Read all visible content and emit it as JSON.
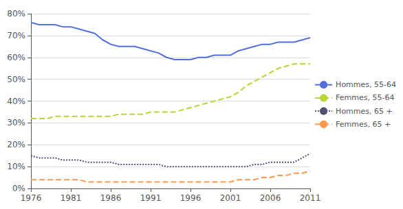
{
  "chart_data": {
    "type": "line",
    "x": [
      1976,
      1977,
      1978,
      1979,
      1980,
      1981,
      1982,
      1983,
      1984,
      1985,
      1986,
      1987,
      1988,
      1989,
      1990,
      1991,
      1992,
      1993,
      1994,
      1995,
      1996,
      1997,
      1998,
      1999,
      2000,
      2001,
      2002,
      2003,
      2004,
      2005,
      2006,
      2007,
      2008,
      2009,
      2010,
      2011
    ],
    "series": [
      {
        "name": "Hommes, 55-64",
        "line_style": "solid",
        "values": [
          76,
          75,
          75,
          75,
          74,
          74,
          73,
          72,
          71,
          68,
          66,
          65,
          65,
          65,
          64,
          63,
          62,
          60,
          59,
          59,
          59,
          60,
          60,
          61,
          61,
          61,
          63,
          64,
          65,
          66,
          66,
          67,
          67,
          67,
          68,
          69
        ]
      },
      {
        "name": "Femmes, 55-64",
        "line_style": "dashed",
        "values": [
          32,
          32,
          32,
          33,
          33,
          33,
          33,
          33,
          33,
          33,
          33,
          34,
          34,
          34,
          34,
          35,
          35,
          35,
          35,
          36,
          37,
          38,
          39,
          40,
          41,
          42,
          44,
          47,
          49,
          51,
          53,
          55,
          56,
          57,
          57,
          57
        ]
      },
      {
        "name": "Hommes, 65 +",
        "line_style": "dotted",
        "values": [
          15,
          14,
          14,
          14,
          13,
          13,
          13,
          12,
          12,
          12,
          12,
          11,
          11,
          11,
          11,
          11,
          11,
          10,
          10,
          10,
          10,
          10,
          10,
          10,
          10,
          10,
          10,
          10,
          11,
          11,
          12,
          12,
          12,
          12,
          14,
          16
        ]
      },
      {
        "name": "Femmes, 65 +",
        "line_style": "dashed",
        "values": [
          4,
          4,
          4,
          4,
          4,
          4,
          4,
          3,
          3,
          3,
          3,
          3,
          3,
          3,
          3,
          3,
          3,
          3,
          3,
          3,
          3,
          3,
          3,
          3,
          3,
          3,
          4,
          4,
          4,
          5,
          5,
          6,
          6,
          7,
          7,
          8
        ]
      }
    ],
    "xlim": [
      1976,
      2011
    ],
    "xticks": [
      1976,
      1981,
      1986,
      1991,
      1996,
      2001,
      2006,
      2011
    ],
    "ylim": [
      0,
      80
    ],
    "yticks": [
      {
        "value": 0,
        "label": "0%"
      },
      {
        "value": 10,
        "label": "10%"
      },
      {
        "value": 20,
        "label": "20%"
      },
      {
        "value": 30,
        "label": "30%"
      },
      {
        "value": 40,
        "label": "40%"
      },
      {
        "value": 50,
        "label": "50%"
      },
      {
        "value": 60,
        "label": "60%"
      },
      {
        "value": 70,
        "label": "70%"
      },
      {
        "value": 80,
        "label": "80%"
      }
    ],
    "grid": true,
    "legend": "right"
  }
}
